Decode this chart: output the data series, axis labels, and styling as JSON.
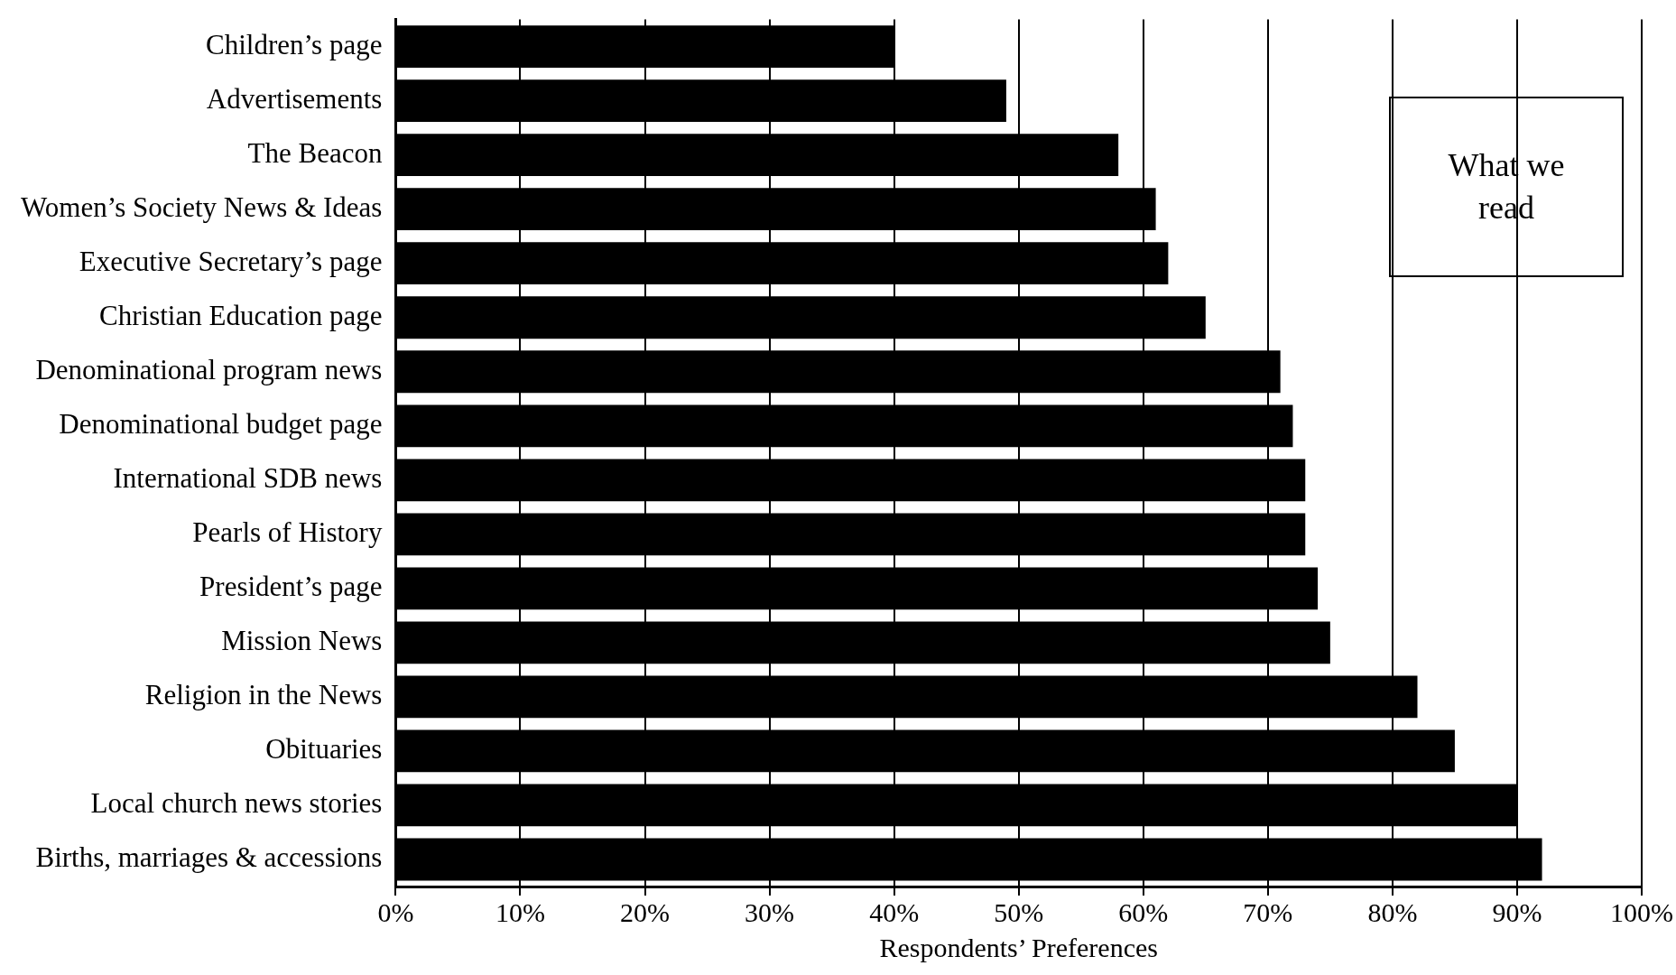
{
  "chart_data": {
    "type": "bar",
    "orientation": "horizontal",
    "title": "What we read",
    "xlabel": "Respondents’ Preferences",
    "categories": [
      "Children’s page",
      "Advertisements",
      "The Beacon",
      "Women’s Society News & Ideas",
      "Executive Secretary’s page",
      "Christian Education page",
      "Denominational program news",
      "Denominational budget page",
      "International SDB news",
      "Pearls of History",
      "President’s page",
      "Mission News",
      "Religion in the News",
      "Obituaries",
      "Local church news stories",
      "Births, marriages & accessions"
    ],
    "values": [
      40,
      49,
      58,
      61,
      62,
      65,
      71,
      72,
      73,
      73,
      74,
      75,
      82,
      85,
      90,
      92
    ],
    "color": "#000000",
    "xlim": [
      0,
      100
    ],
    "xticks": [
      {
        "value": 0,
        "label": "0%"
      },
      {
        "value": 10,
        "label": "10%"
      },
      {
        "value": 20,
        "label": "20%"
      },
      {
        "value": 30,
        "label": "30%"
      },
      {
        "value": 40,
        "label": "40%"
      },
      {
        "value": 50,
        "label": "50%"
      },
      {
        "value": 60,
        "label": "60%"
      },
      {
        "value": 70,
        "label": "70%"
      },
      {
        "value": 80,
        "label": "80%"
      },
      {
        "value": 90,
        "label": "90%"
      },
      {
        "value": 100,
        "label": "100%"
      }
    ],
    "grid": "x"
  }
}
